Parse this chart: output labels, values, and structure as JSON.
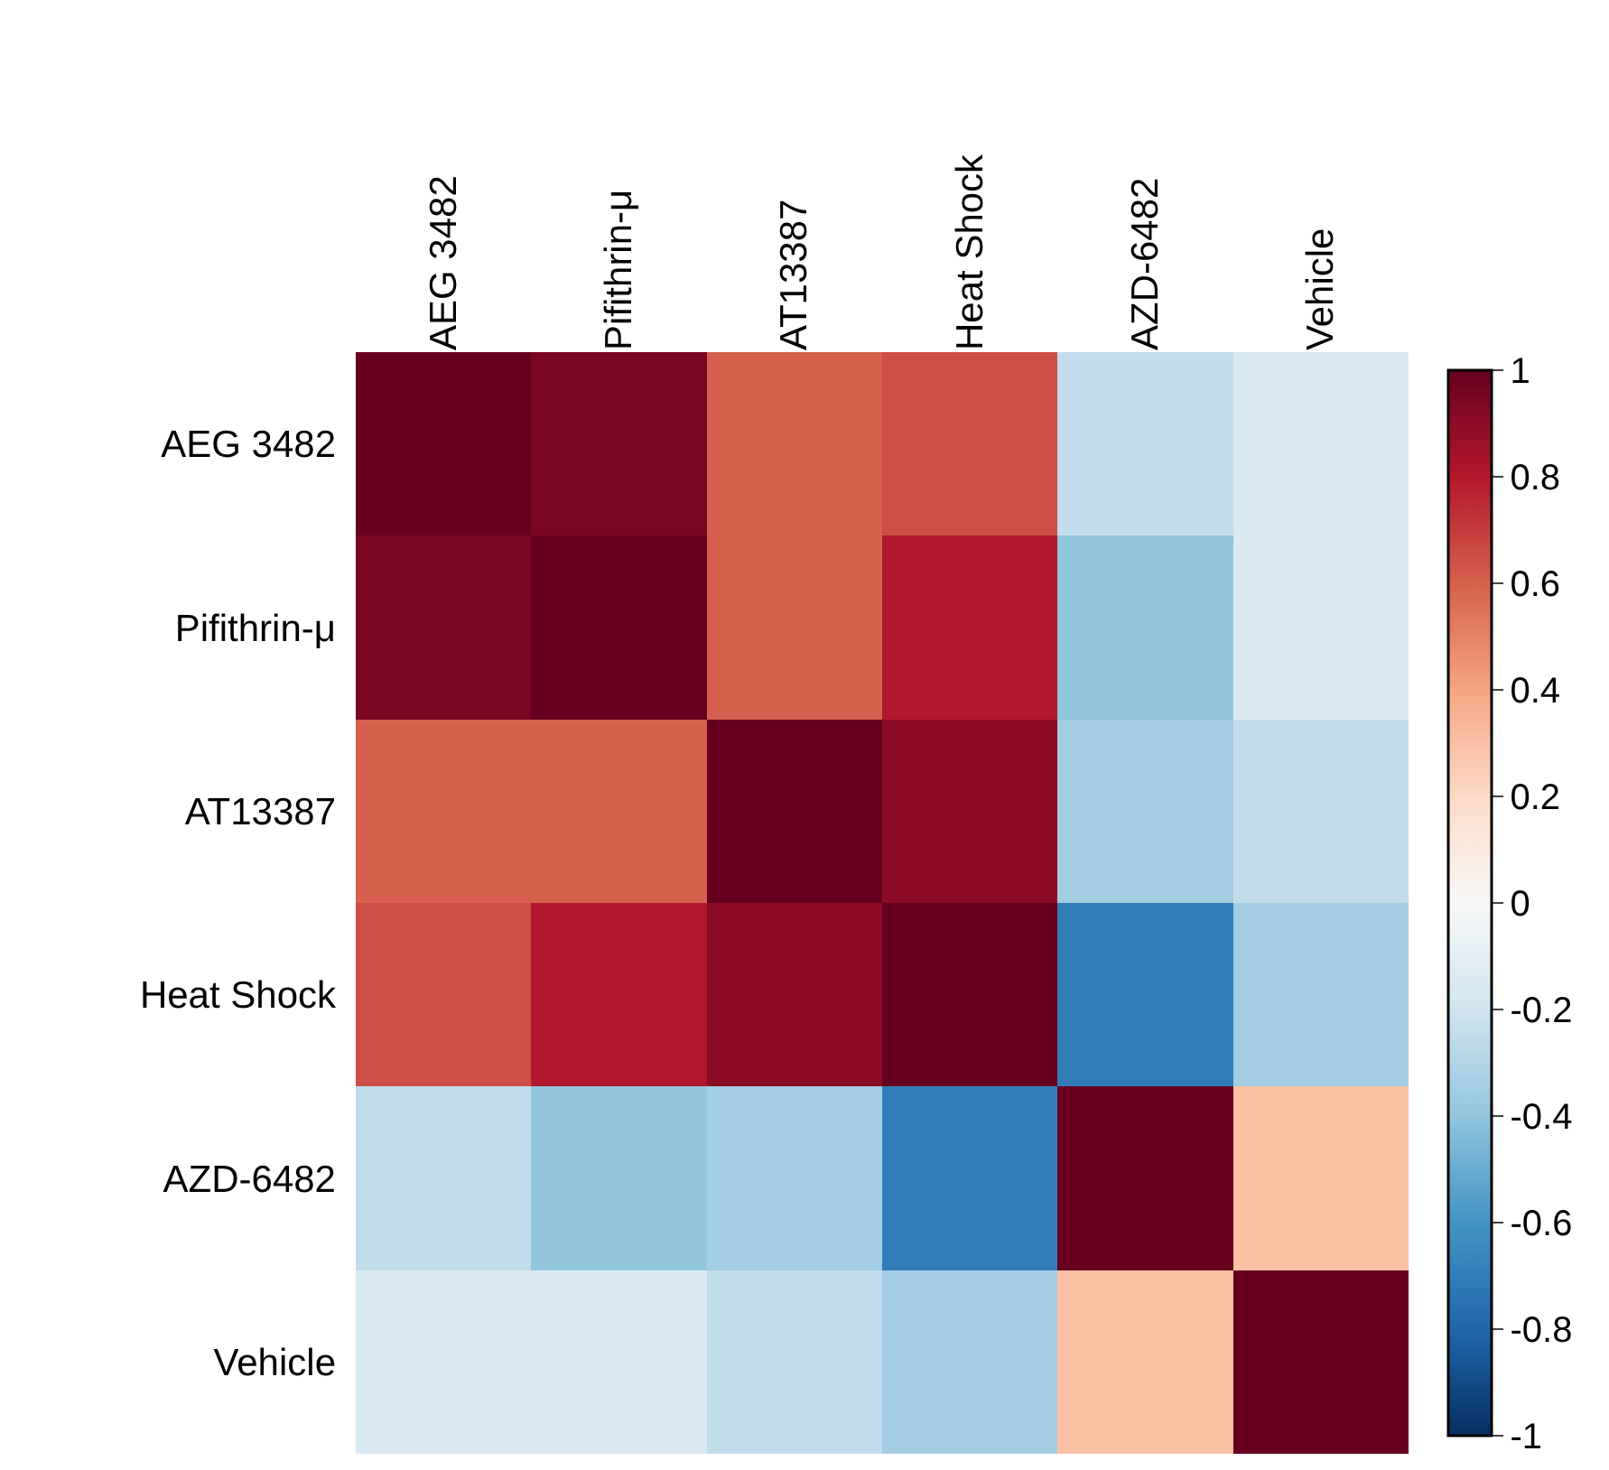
{
  "chart_data": {
    "type": "heatmap",
    "categories": [
      "AEG 3482",
      "Pifithrin-μ",
      "AT13387",
      "Heat Shock",
      "AZD-6482",
      "Vehicle"
    ],
    "y_categories": [
      "AEG 3482",
      "Pifithrin-μ",
      "AT13387",
      "Heat Shock",
      "AZD-6482",
      "Vehicle"
    ],
    "cells": [
      [
        1,
        0.95,
        0.6,
        0.65,
        -0.25,
        -0.15
      ],
      [
        0.95,
        1,
        0.6,
        0.8,
        -0.4,
        -0.15
      ],
      [
        0.6,
        0.6,
        1,
        0.9,
        -0.35,
        -0.25
      ],
      [
        0.65,
        0.8,
        0.9,
        1,
        -0.7,
        -0.35
      ],
      [
        -0.25,
        -0.4,
        -0.35,
        -0.7,
        1,
        0.3
      ],
      [
        -0.15,
        -0.15,
        -0.25,
        -0.35,
        0.3,
        1
      ]
    ],
    "clim": [
      -1,
      1
    ],
    "cticks": [
      -1,
      -0.8,
      -0.6,
      -0.4,
      -0.2,
      0,
      0.2,
      0.4,
      0.6,
      0.8,
      1
    ]
  }
}
